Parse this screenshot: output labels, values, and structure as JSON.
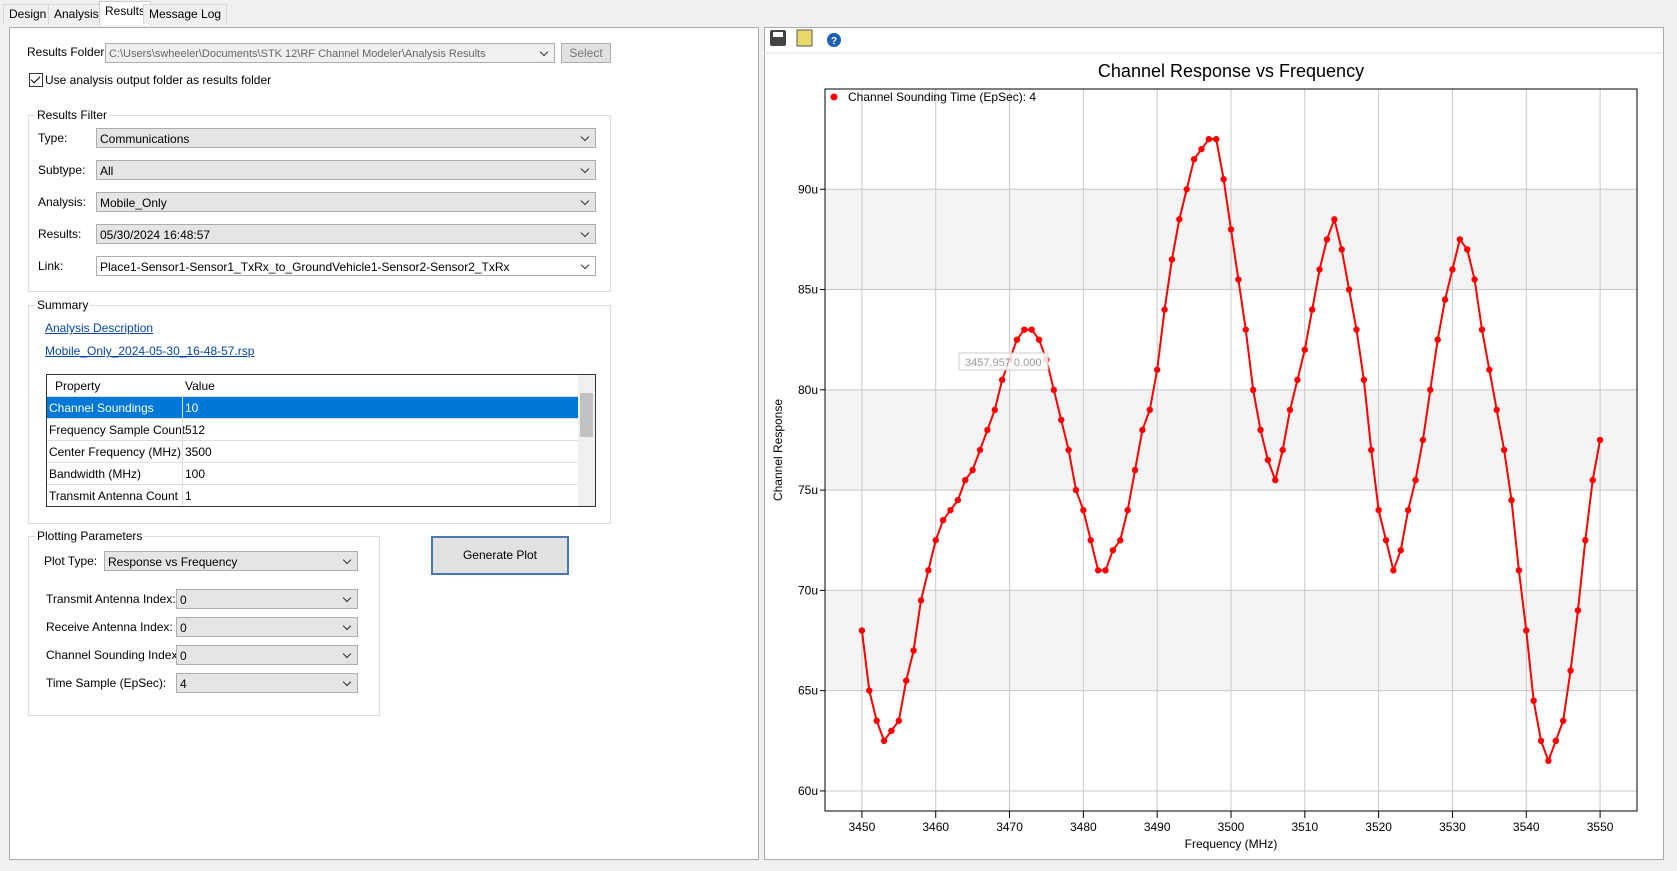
{
  "tabs": [
    "Design",
    "Analysis",
    "Results",
    "Message Log"
  ],
  "results_folder": {
    "label": "Results Folder:",
    "path": "C:\\Users\\swheeler\\Documents\\STK 12\\RF Channel Modeler\\Analysis Results",
    "button": "Select"
  },
  "checkbox": "Use analysis output folder as results folder",
  "filter": {
    "title": "Results Filter",
    "fields": [
      {
        "label": "Type:",
        "value": "Communications"
      },
      {
        "label": "Subtype:",
        "value": "All"
      },
      {
        "label": "Analysis:",
        "value": "Mobile_Only"
      },
      {
        "label": "Results:",
        "value": "05/30/2024 16:48:57"
      },
      {
        "label": "Link:",
        "value": "Place1-Sensor1-Sensor1_TxRx_to_GroundVehicle1-Sensor2-Sensor2_TxRx"
      }
    ]
  },
  "summary": {
    "title": "Summary",
    "links": [
      "Analysis Description",
      "Mobile_Only_2024-05-30_16-48-57.rsp"
    ],
    "table": {
      "header": [
        "Property",
        "Value"
      ],
      "rows": [
        [
          "Channel Soundings",
          "10"
        ],
        [
          "Frequency Sample Count",
          "512"
        ],
        [
          "Center Frequency (MHz)",
          "3500"
        ],
        [
          "Bandwidth (MHz)",
          "100"
        ],
        [
          "Transmit Antenna Count",
          "1"
        ]
      ]
    }
  },
  "plotting": {
    "title": "Plotting Parameters",
    "fields": [
      {
        "label": "Plot Type:",
        "value": "Response vs Frequency"
      },
      {
        "label": "Transmit Antenna Index:",
        "value": "0"
      },
      {
        "label": "Receive Antenna Index:",
        "value": "0"
      },
      {
        "label": "Channel Sounding Index:",
        "value": "0"
      },
      {
        "label": "Time Sample (EpSec):",
        "value": "4"
      }
    ],
    "button": "Generate Plot"
  },
  "chart_data": {
    "type": "line",
    "title": "Channel Response vs Frequency",
    "x_label": "Frequency (MHz)",
    "y_label": "Channel Response",
    "annotation": "3457.957  0.000",
    "x": [
      3450,
      3451,
      3452,
      3453,
      3454,
      3455,
      3456,
      3457,
      3458,
      3459,
      3460,
      3461,
      3462,
      3463,
      3464,
      3465,
      3466,
      3467,
      3468,
      3469,
      3470,
      3471,
      3472,
      3473,
      3474,
      3475,
      3476,
      3477,
      3478,
      3479,
      3480,
      3481,
      3482,
      3483,
      3484,
      3485,
      3486,
      3487,
      3488,
      3489,
      3490,
      3491,
      3492,
      3493,
      3494,
      3495,
      3496,
      3497,
      3498,
      3499,
      3500,
      3501,
      3502,
      3503,
      3504,
      3505,
      3506,
      3507,
      3508,
      3509,
      3510,
      3511,
      3512,
      3513,
      3514,
      3515,
      3516,
      3517,
      3518,
      3519,
      3520,
      3521,
      3522,
      3523,
      3524,
      3525,
      3526,
      3527,
      3528,
      3529,
      3530,
      3531,
      3532,
      3533,
      3534,
      3535,
      3536,
      3537,
      3538,
      3539,
      3540,
      3541,
      3542,
      3543,
      3544,
      3545,
      3546,
      3547,
      3548,
      3549,
      3550
    ],
    "series": [
      {
        "name": "Channel Sounding Time (EpSec): 4",
        "color": "#ff0000",
        "values": [
          68,
          65,
          63.5,
          62.5,
          63,
          63.5,
          65.5,
          67,
          69.5,
          71,
          72.5,
          73.5,
          74,
          74.5,
          75.5,
          76,
          77,
          78,
          79,
          80.5,
          81.5,
          82.5,
          83,
          83,
          82.5,
          81.5,
          80,
          78.5,
          77,
          75,
          74,
          72.5,
          71,
          71,
          72,
          72.5,
          74,
          76,
          78,
          79,
          81,
          84,
          86.5,
          88.5,
          90,
          91.5,
          92,
          92.5,
          92.5,
          90.5,
          88,
          85.5,
          83,
          80,
          78,
          76.5,
          75.5,
          77,
          79,
          80.5,
          82,
          84,
          86,
          87.5,
          88.5,
          87,
          85,
          83,
          80.5,
          77,
          74,
          72.5,
          71,
          72,
          74,
          75.5,
          77.5,
          80,
          82.5,
          84.5,
          86,
          87.5,
          87,
          85.5,
          83,
          81,
          79,
          77,
          74.5,
          71,
          68,
          64.5,
          62.5,
          61.5,
          62.5,
          63.5,
          66,
          69,
          72.5,
          75.5,
          77.5
        ]
      }
    ],
    "xlim": [
      3445,
      3555
    ],
    "ylim": [
      59,
      95
    ],
    "xticks": [
      3450,
      3460,
      3470,
      3480,
      3490,
      3500,
      3510,
      3520,
      3530,
      3540,
      3550
    ],
    "yticks": [
      {
        "value": 60,
        "label": "60u"
      },
      {
        "value": 65,
        "label": "65u"
      },
      {
        "value": 70,
        "label": "70u"
      },
      {
        "value": 75,
        "label": "75u"
      },
      {
        "value": 80,
        "label": "80u"
      },
      {
        "value": 85,
        "label": "85u"
      },
      {
        "value": 90,
        "label": "90u"
      }
    ],
    "grid": true,
    "legend": "top-left"
  }
}
